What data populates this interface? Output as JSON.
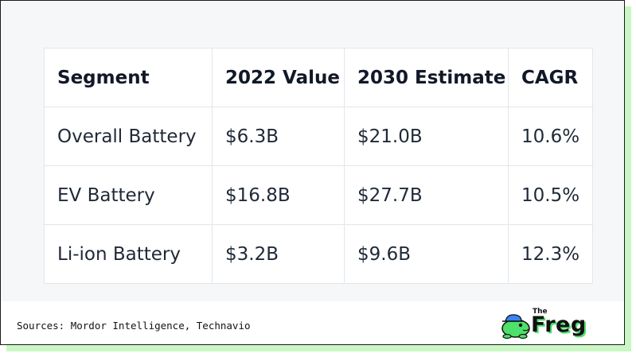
{
  "table": {
    "headers": [
      "Segment",
      "2022 Value",
      "2030 Estimate",
      "CAGR"
    ],
    "rows": [
      [
        "Overall Battery",
        "$6.3B",
        "$21.0B",
        "10.6%"
      ],
      [
        "EV Battery",
        "$16.8B",
        "$27.7B",
        "10.5%"
      ],
      [
        "Li-ion Battery",
        "$3.2B",
        "$9.6B",
        "12.3%"
      ]
    ]
  },
  "footer": {
    "sources": "Sources: Mordor Intelligence, Technavio",
    "logo_small": "The",
    "logo_word": "Freg",
    "logo_icon": "frog-mascot-icon"
  },
  "colors": {
    "accent_green": "#4ee06a",
    "shadow_green": "#c9f7c4",
    "panel_bg": "#f6f7f9",
    "border": "#e3e6ea"
  }
}
